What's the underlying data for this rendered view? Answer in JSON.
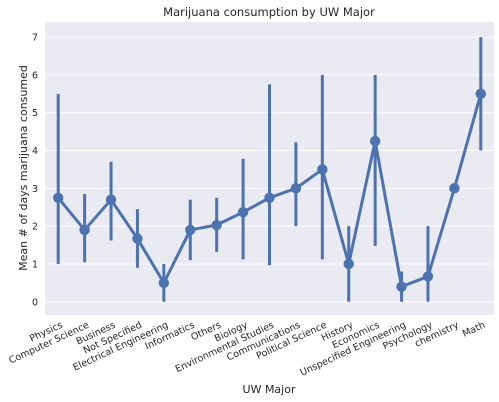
{
  "chart_data": {
    "type": "line",
    "title": "Marijuana consumption by UW Major",
    "xlabel": "UW Major",
    "ylabel": "Mean # of days marijuana consumed",
    "ylim": [
      -0.35,
      7.4
    ],
    "yticks": [
      0,
      1,
      2,
      3,
      4,
      5,
      6,
      7
    ],
    "grid": true,
    "style": "point plot with vertical error bars",
    "color": "#4c72b0",
    "background": "#eaeaf2",
    "categories": [
      "Physics",
      "Computer Science",
      "Business",
      "Not Specified",
      "Electrical Engineering",
      "Informatics",
      "Others",
      "Biology",
      "Environmental Studies",
      "Communications",
      "Political Science",
      "History",
      "Economics",
      "Unspecified Engineering",
      "Psychology",
      "chemistry",
      "Math"
    ],
    "values": [
      2.75,
      1.9,
      2.7,
      1.67,
      0.5,
      1.9,
      2.03,
      2.37,
      2.75,
      3.0,
      3.5,
      1.0,
      4.25,
      0.4,
      0.67,
      3.0,
      5.5
    ],
    "error_low": [
      1.0,
      1.05,
      1.62,
      0.9,
      0.0,
      1.1,
      1.32,
      1.12,
      0.97,
      2.0,
      1.12,
      0.0,
      1.48,
      0.0,
      0.0,
      3.0,
      4.0
    ],
    "error_high": [
      5.5,
      2.85,
      3.7,
      2.45,
      1.0,
      2.7,
      2.75,
      3.78,
      5.75,
      4.22,
      6.0,
      2.0,
      6.0,
      0.8,
      2.0,
      3.0,
      7.0
    ]
  }
}
